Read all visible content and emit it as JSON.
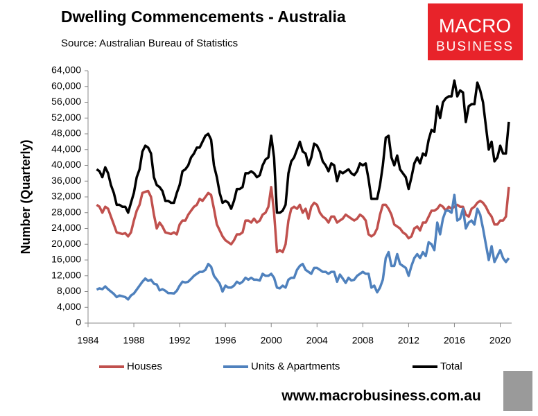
{
  "chart_data": {
    "type": "line",
    "title": "Dwelling Commencements - Australia",
    "subtitle": "Source:  Australian Bureau of Statistics",
    "y_label": "Number (Quarterly)",
    "logo": [
      "MACRO",
      "BUSINESS"
    ],
    "footer": "www.macrobusiness.com.au",
    "xlim": [
      1984,
      2021
    ],
    "xticks": [
      1984,
      1988,
      1992,
      1996,
      2000,
      2004,
      2008,
      2012,
      2016,
      2020
    ],
    "ylim": [
      0,
      64000
    ],
    "yticks": [
      0,
      {
        "value": 4000,
        "label": "4,000"
      },
      {
        "value": 8000,
        "label": "8,000"
      },
      {
        "value": 12000,
        "label": "12,000"
      },
      {
        "value": 16000,
        "label": "16,000"
      },
      {
        "value": 20000,
        "label": "20,000"
      },
      {
        "value": 24000,
        "label": "24,000"
      },
      {
        "value": 28000,
        "label": "28,000"
      },
      {
        "value": 32000,
        "label": "32,000"
      },
      {
        "value": 36000,
        "label": "36,000"
      },
      {
        "value": 40000,
        "label": "40,000"
      },
      {
        "value": 44000,
        "label": "44,000"
      },
      {
        "value": 48000,
        "label": "48,000"
      },
      {
        "value": 52000,
        "label": "52,000"
      },
      {
        "value": 56000,
        "label": "56,000"
      },
      {
        "value": 60000,
        "label": "60,000"
      },
      {
        "value": 64000,
        "label": "64,000"
      }
    ],
    "x": [
      1984.75,
      1985,
      1985.25,
      1985.5,
      1985.75,
      1986,
      1986.25,
      1986.5,
      1986.75,
      1987,
      1987.25,
      1987.5,
      1987.75,
      1988,
      1988.25,
      1988.5,
      1988.75,
      1989,
      1989.25,
      1989.5,
      1989.75,
      1990,
      1990.25,
      1990.5,
      1990.75,
      1991,
      1991.25,
      1991.5,
      1991.75,
      1992,
      1992.25,
      1992.5,
      1992.75,
      1993,
      1993.25,
      1993.5,
      1993.75,
      1994,
      1994.25,
      1994.5,
      1994.75,
      1995,
      1995.25,
      1995.5,
      1995.75,
      1996,
      1996.25,
      1996.5,
      1996.75,
      1997,
      1997.25,
      1997.5,
      1997.75,
      1998,
      1998.25,
      1998.5,
      1998.75,
      1999,
      1999.25,
      1999.5,
      1999.75,
      2000,
      2000.25,
      2000.5,
      2000.75,
      2001,
      2001.25,
      2001.5,
      2001.75,
      2002,
      2002.25,
      2002.5,
      2002.75,
      2003,
      2003.25,
      2003.5,
      2003.75,
      2004,
      2004.25,
      2004.5,
      2004.75,
      2005,
      2005.25,
      2005.5,
      2005.75,
      2006,
      2006.25,
      2006.5,
      2006.75,
      2007,
      2007.25,
      2007.5,
      2007.75,
      2008,
      2008.25,
      2008.5,
      2008.75,
      2009,
      2009.25,
      2009.5,
      2009.75,
      2010,
      2010.25,
      2010.5,
      2010.75,
      2011,
      2011.25,
      2011.5,
      2011.75,
      2012,
      2012.25,
      2012.5,
      2012.75,
      2013,
      2013.25,
      2013.5,
      2013.75,
      2014,
      2014.25,
      2014.5,
      2014.75,
      2015,
      2015.25,
      2015.5,
      2015.75,
      2016,
      2016.25,
      2016.5,
      2016.75,
      2017,
      2017.25,
      2017.5,
      2017.75,
      2018,
      2018.25,
      2018.5,
      2018.75,
      2019,
      2019.25,
      2019.5,
      2019.75,
      2020,
      2020.25,
      2020.5,
      2020.75
    ],
    "series": [
      {
        "name": "Houses",
        "color": "#c0504d",
        "values": [
          30000,
          29500,
          28000,
          29500,
          29000,
          27000,
          25000,
          23000,
          22800,
          22600,
          22800,
          22000,
          23000,
          26000,
          28500,
          30000,
          33000,
          33300,
          33500,
          32000,
          27500,
          24000,
          25500,
          24500,
          23000,
          22800,
          22600,
          23000,
          22500,
          25000,
          26000,
          26000,
          27500,
          28500,
          29500,
          30000,
          31500,
          31000,
          32000,
          33000,
          32500,
          29000,
          25000,
          23500,
          22000,
          21000,
          20500,
          20000,
          21000,
          22500,
          22500,
          23000,
          26000,
          26000,
          25500,
          26500,
          25500,
          26000,
          27500,
          28000,
          29500,
          34500,
          28000,
          18000,
          18500,
          18000,
          20000,
          26000,
          29000,
          29500,
          29000,
          30000,
          28000,
          29000,
          26500,
          29500,
          30500,
          30000,
          28000,
          27000,
          26500,
          25500,
          27000,
          27000,
          25500,
          26000,
          26500,
          27500,
          27000,
          26500,
          26000,
          26500,
          27500,
          27000,
          26000,
          22500,
          22000,
          22500,
          24000,
          27500,
          30000,
          30000,
          29000,
          27500,
          25000,
          24500,
          24000,
          23000,
          22500,
          21500,
          22000,
          24000,
          24500,
          23500,
          25500,
          25500,
          27000,
          28500,
          28500,
          29000,
          30000,
          29500,
          28500,
          29500,
          29000,
          29500,
          30000,
          29500,
          29500,
          27500,
          27000,
          29000,
          29500,
          30500,
          31000,
          30500,
          29500,
          28000,
          27000,
          25000,
          25000,
          26000,
          26000,
          27000,
          34500
        ]
      },
      {
        "name": "Units & Apartments",
        "color": "#4f81bd",
        "values": [
          8500,
          8800,
          8600,
          9300,
          8600,
          8000,
          7400,
          6600,
          7000,
          6800,
          6600,
          6000,
          7000,
          7500,
          8500,
          9500,
          10500,
          11300,
          10700,
          11000,
          10000,
          9800,
          8300,
          8600,
          8200,
          7600,
          7600,
          7500,
          8200,
          9500,
          10500,
          10300,
          10500,
          11200,
          12000,
          12500,
          13000,
          13000,
          13500,
          15000,
          14300,
          12000,
          11000,
          10000,
          8000,
          9500,
          9000,
          9000,
          9500,
          10500,
          10000,
          10500,
          11500,
          11000,
          11500,
          11000,
          11000,
          10800,
          12500,
          12000,
          12000,
          12500,
          11500,
          9000,
          8800,
          9500,
          9000,
          11000,
          11500,
          11500,
          13500,
          14500,
          15000,
          13500,
          13000,
          12500,
          14000,
          14000,
          13500,
          13000,
          13000,
          12500,
          13000,
          13000,
          10500,
          12300,
          11300,
          10200,
          11500,
          10800,
          11000,
          12000,
          12500,
          13000,
          12500,
          12500,
          9000,
          9500,
          7800,
          9000,
          11000,
          16500,
          18000,
          14500,
          14500,
          17500,
          15000,
          14500,
          14000,
          12000,
          14500,
          16500,
          17500,
          16500,
          18000,
          17000,
          20500,
          20000,
          18500,
          25500,
          22500,
          26500,
          28500,
          28500,
          28000,
          32500,
          26000,
          26500,
          29000,
          24000,
          25500,
          26000,
          25000,
          29000,
          27500,
          24000,
          20000,
          16000,
          19500,
          15500,
          17000,
          18500,
          16500,
          15500,
          16500
        ]
      },
      {
        "name": "Total",
        "color": "#000000",
        "values": [
          39000,
          38500,
          37000,
          39500,
          38000,
          35000,
          33000,
          30000,
          30000,
          29500,
          29500,
          28000,
          30500,
          33000,
          37000,
          39000,
          43500,
          45000,
          44500,
          43000,
          37000,
          35000,
          34500,
          33500,
          31000,
          31000,
          30500,
          30500,
          33000,
          35000,
          38500,
          39000,
          40000,
          42000,
          43000,
          44500,
          44500,
          46000,
          47500,
          48000,
          46500,
          40000,
          37000,
          33000,
          30500,
          31000,
          30500,
          29000,
          31000,
          34000,
          34000,
          34500,
          38000,
          38000,
          38500,
          38000,
          37000,
          37500,
          40000,
          41500,
          42000,
          47500,
          42000,
          28000,
          28000,
          28500,
          30000,
          38000,
          41000,
          42000,
          44000,
          46000,
          43500,
          43000,
          40000,
          42000,
          45500,
          45000,
          43500,
          41000,
          40000,
          38500,
          40500,
          40000,
          36000,
          38500,
          38000,
          38500,
          39000,
          38000,
          37500,
          38500,
          40500,
          40000,
          40500,
          36500,
          31500,
          31500,
          31500,
          35000,
          40000,
          47000,
          47500,
          42000,
          40000,
          42500,
          39000,
          38000,
          37000,
          34000,
          37000,
          40500,
          42000,
          40500,
          43000,
          42500,
          46500,
          49000,
          48500,
          55000,
          52000,
          56000,
          57000,
          57500,
          57500,
          61500,
          57500,
          59000,
          58500,
          51000,
          55000,
          55500,
          55500,
          61000,
          59000,
          56000,
          50000,
          44000,
          46000,
          41000,
          42000,
          45000,
          43000,
          43000,
          51000
        ]
      }
    ]
  }
}
